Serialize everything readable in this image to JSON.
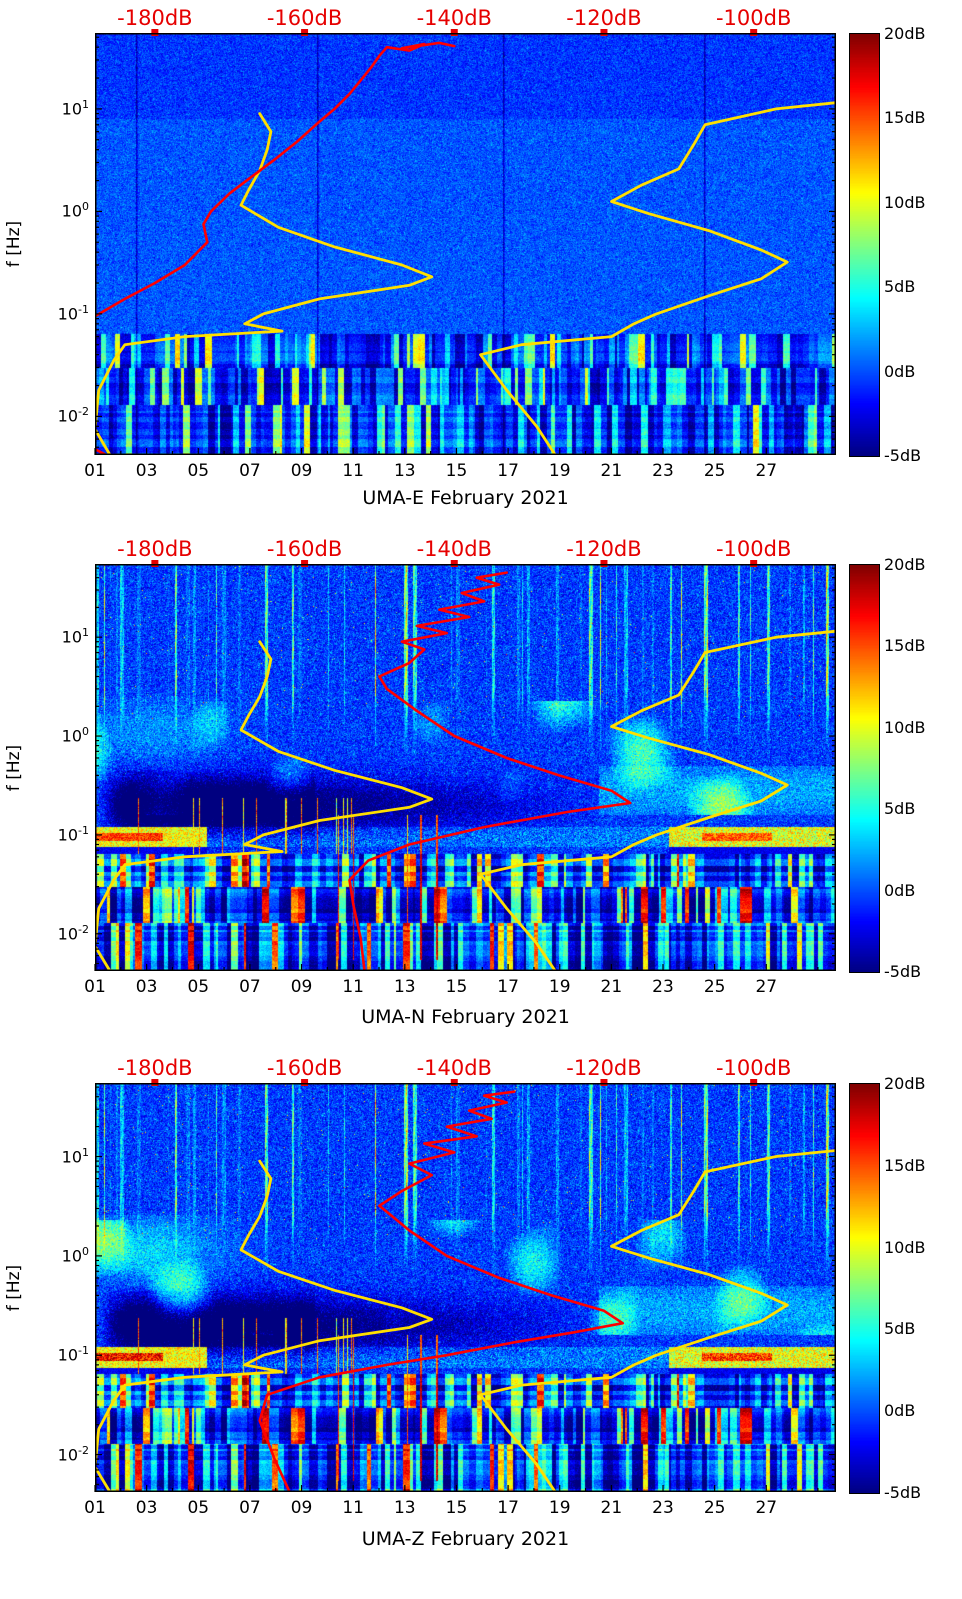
{
  "figure": {
    "kind": "seismic spectrogram figure",
    "month": "February 2021",
    "stations": [
      "UMA-E",
      "UMA-N",
      "UMA-Z"
    ]
  },
  "colors": {
    "accent_red": "#e60000",
    "curve_yellow": "#ffdf00",
    "curve_red": "#ff0000",
    "axis_black": "#000000",
    "background": "#ffffff"
  },
  "top_axis": {
    "labels": [
      "-180dB",
      "-160dB",
      "-140dB",
      "-120dB",
      "-100dB"
    ],
    "values": [
      -180,
      -160,
      -140,
      -120,
      -100
    ],
    "range_db": [
      -188,
      -89
    ]
  },
  "x_axis": {
    "tick_labels": [
      "01",
      "03",
      "05",
      "07",
      "09",
      "11",
      "13",
      "15",
      "17",
      "19",
      "21",
      "23",
      "25",
      "27"
    ],
    "tick_days": [
      1,
      3,
      5,
      7,
      9,
      11,
      13,
      15,
      17,
      19,
      21,
      23,
      25,
      27
    ],
    "day_span": [
      1,
      29.7
    ]
  },
  "y_axis": {
    "label": "f [Hz]",
    "scale": "log",
    "tick_exponents": [
      1,
      0,
      -1,
      -2
    ],
    "range_hz": [
      0.0042,
      55
    ]
  },
  "colorbar": {
    "tick_labels": [
      "20dB",
      "15dB",
      "10dB",
      "5dB",
      "0dB",
      "-5dB"
    ],
    "tick_values": [
      20,
      15,
      10,
      5,
      0,
      -5
    ],
    "range": [
      -5,
      20
    ],
    "colormap": "jet"
  },
  "panels": [
    {
      "station": "UMA-E",
      "title": "UMA-E February 2021",
      "texture": {
        "colseed": 5,
        "seed": 11,
        "base": 0.2,
        "std": 1.0,
        "stripes": 0,
        "stripe_density": 0,
        "stripe_amp": 0,
        "dark_patch": 0,
        "band01": 0,
        "band_red": 0,
        "blob_tl": 0,
        "cyan": 0,
        "high_atten": 0.8,
        "low_hot": 0.05,
        "low_mid": 0.2,
        "hot_max": 11,
        "row_noise": 1.5,
        "dark_lines": [
          2.6,
          9.6,
          16.8,
          24.6
        ],
        "red_streak_days": [],
        "spike_lines": 0
      }
    },
    {
      "station": "UMA-N",
      "title": "UMA-N February 2021",
      "texture": {
        "colseed": 77,
        "seed": 21,
        "base": -0.5,
        "std": 1.4,
        "stripes": 1,
        "stripe_density": 0.1,
        "stripe_amp": 11,
        "dark_patch": 1,
        "band01": 1,
        "band_red": 5,
        "blob_tl": 2.2,
        "cyan": 1,
        "high_atten": 0,
        "low_hot": 0.15,
        "low_mid": 0.27,
        "hot_max": 18,
        "row_noise": 2.4,
        "dark_lines": [],
        "red_streak_days": [
          10.4,
          11.0,
          13.1,
          13.6,
          14.2
        ],
        "spike_lines": 14
      }
    },
    {
      "station": "UMA-Z",
      "title": "UMA-Z February 2021",
      "texture": {
        "colseed": 77,
        "seed": 31,
        "base": -0.5,
        "std": 1.4,
        "stripes": 1,
        "stripe_density": 0.1,
        "stripe_amp": 11,
        "dark_patch": 1,
        "band01": 1,
        "band_red": 7,
        "blob_tl": 4,
        "cyan": 1,
        "high_atten": 0,
        "low_hot": 0.15,
        "low_mid": 0.27,
        "hot_max": 18,
        "row_noise": 2.4,
        "dark_lines": [],
        "red_streak_days": [
          10.4,
          11.0,
          13.1,
          13.6,
          14.2
        ],
        "spike_lines": 14
      }
    }
  ],
  "chart_data": {
    "type": "heatmap",
    "description": "Three stacked power-spectral-density spectrograms (jet colormap, -5 to 20 dB) of seismic channels UMA-E, UMA-N, UMA-Z for February 2021. Yellow curves are the Peterson low/high noise models and the red curve is the station median PSD, both read against the red top dB axis (-188 to -89 dB).",
    "x_days_range": [
      1,
      29.7
    ],
    "y_freq_hz_range": [
      0.0042,
      55
    ],
    "z_db_range": [
      -5,
      20
    ],
    "top_db_axis_range": [
      -188,
      -89
    ],
    "noise_model_low_db_hz": [
      [
        -186,
        0.0042
      ],
      [
        -188,
        0.0075
      ],
      [
        -187.5,
        0.018
      ],
      [
        -185.5,
        0.035
      ],
      [
        -184,
        0.05
      ],
      [
        -176,
        0.06
      ],
      [
        -163,
        0.068
      ],
      [
        -168,
        0.08
      ],
      [
        -165.5,
        0.1
      ],
      [
        -158,
        0.14
      ],
      [
        -146,
        0.19
      ],
      [
        -143,
        0.23
      ],
      [
        -147,
        0.3
      ],
      [
        -156,
        0.45
      ],
      [
        -163.5,
        0.7
      ],
      [
        -168.5,
        1.15
      ],
      [
        -167.5,
        1.6
      ],
      [
        -166,
        2.5
      ],
      [
        -165,
        4
      ],
      [
        -164.5,
        6
      ],
      [
        -166,
        9
      ]
    ],
    "noise_model_high_db_hz": [
      [
        -126.5,
        0.0042
      ],
      [
        -129,
        0.008
      ],
      [
        -133,
        0.018
      ],
      [
        -136.5,
        0.04
      ],
      [
        -131,
        0.05
      ],
      [
        -119,
        0.06
      ],
      [
        -116,
        0.08
      ],
      [
        -113,
        0.1
      ],
      [
        -106,
        0.15
      ],
      [
        -99,
        0.22
      ],
      [
        -95.5,
        0.32
      ],
      [
        -99,
        0.42
      ],
      [
        -106,
        0.65
      ],
      [
        -114,
        0.95
      ],
      [
        -119,
        1.25
      ],
      [
        -115,
        1.8
      ],
      [
        -110,
        2.6
      ],
      [
        -108,
        4.5
      ],
      [
        -106.5,
        7
      ],
      [
        -97,
        10
      ],
      [
        -89,
        11.5
      ]
    ],
    "median_psd_low_tail_db_hz": [
      [
        -188,
        0.0048
      ],
      [
        -186.5,
        0.0042
      ]
    ],
    "median_psd_db_hz": {
      "UMA-E": [
        [
          -188,
          0.095
        ],
        [
          -184,
          0.14
        ],
        [
          -180,
          0.2
        ],
        [
          -176,
          0.3
        ],
        [
          -173,
          0.5
        ],
        [
          -173.5,
          0.75
        ],
        [
          -172.5,
          1.0
        ],
        [
          -170,
          1.5
        ],
        [
          -167,
          2.2
        ],
        [
          -164,
          3.2
        ],
        [
          -161,
          4.8
        ],
        [
          -158.5,
          7
        ],
        [
          -156,
          10
        ],
        [
          -154,
          14
        ],
        [
          -152.5,
          19
        ],
        [
          -151,
          26
        ],
        [
          -150,
          33
        ],
        [
          -149,
          40
        ],
        [
          -146,
          37
        ],
        [
          -144,
          43
        ],
        [
          -147,
          39
        ],
        [
          -142,
          44
        ],
        [
          -140,
          41
        ]
      ],
      "UMA-N": [
        [
          -152,
          0.0042
        ],
        [
          -152.5,
          0.009
        ],
        [
          -153.5,
          0.02
        ],
        [
          -154,
          0.035
        ],
        [
          -151.5,
          0.055
        ],
        [
          -146,
          0.08
        ],
        [
          -136,
          0.12
        ],
        [
          -125,
          0.17
        ],
        [
          -116.5,
          0.21
        ],
        [
          -119,
          0.28
        ],
        [
          -126,
          0.4
        ],
        [
          -133,
          0.6
        ],
        [
          -140,
          1.0
        ],
        [
          -145,
          1.8
        ],
        [
          -149,
          3.0
        ],
        [
          -150,
          4.0
        ],
        [
          -146,
          5.5
        ],
        [
          -144,
          7.5
        ],
        [
          -147,
          9
        ],
        [
          -141,
          11
        ],
        [
          -145,
          13
        ],
        [
          -138,
          16
        ],
        [
          -142,
          19
        ],
        [
          -136,
          23
        ],
        [
          -139,
          28
        ],
        [
          -134,
          34
        ],
        [
          -137,
          40
        ],
        [
          -133,
          45
        ]
      ],
      "UMA-Z": [
        [
          -162,
          0.0042
        ],
        [
          -164,
          0.009
        ],
        [
          -166,
          0.022
        ],
        [
          -165,
          0.04
        ],
        [
          -158,
          0.06
        ],
        [
          -149,
          0.08
        ],
        [
          -141,
          0.1
        ],
        [
          -132,
          0.135
        ],
        [
          -124,
          0.17
        ],
        [
          -117.5,
          0.21
        ],
        [
          -120,
          0.28
        ],
        [
          -127,
          0.4
        ],
        [
          -134,
          0.6
        ],
        [
          -141,
          1.0
        ],
        [
          -146,
          1.8
        ],
        [
          -150,
          3.2
        ],
        [
          -147,
          4.5
        ],
        [
          -143,
          6.5
        ],
        [
          -146,
          8.5
        ],
        [
          -140,
          11
        ],
        [
          -144,
          13.5
        ],
        [
          -137,
          16
        ],
        [
          -141,
          20
        ],
        [
          -135,
          24
        ],
        [
          -138,
          29
        ],
        [
          -133,
          35
        ],
        [
          -136,
          41
        ],
        [
          -132,
          45
        ]
      ]
    },
    "panel_titles": [
      "UMA-E February 2021",
      "UMA-N February 2021",
      "UMA-Z February 2021"
    ]
  }
}
